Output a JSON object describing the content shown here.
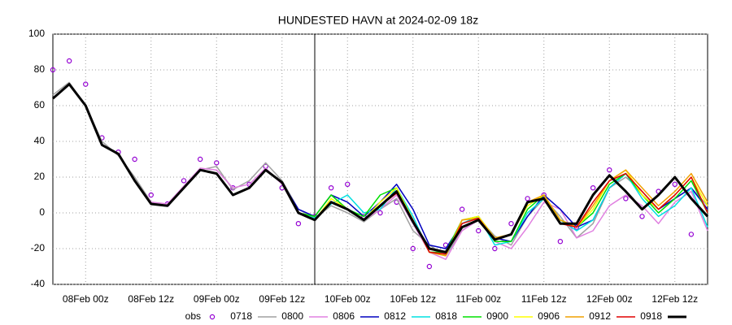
{
  "chart_data": {
    "type": "line",
    "title": "HUNDESTED HAVN at 2024-02-09 18z",
    "categories": [
      null,
      null,
      "08Feb 00z",
      null,
      null,
      null,
      "08Feb 12z",
      null,
      null,
      null,
      "09Feb 00z",
      null,
      null,
      null,
      "09Feb 12z",
      null,
      null,
      null,
      "10Feb 00z",
      null,
      null,
      null,
      "10Feb 12z",
      null,
      null,
      null,
      "11Feb 00z",
      null,
      null,
      null,
      "11Feb 12z",
      null,
      null,
      null,
      "12Feb 00z",
      null,
      null,
      null,
      "12Feb 12z",
      null,
      null
    ],
    "ylim": [
      -40,
      100
    ],
    "yticks": [
      -40,
      -20,
      0,
      20,
      40,
      60,
      80,
      100
    ],
    "grid": true,
    "series": [
      {
        "name": "obs",
        "color": "#9400d3",
        "marker": "circle",
        "values": [
          80,
          85,
          72,
          42,
          34,
          30,
          10,
          5,
          18,
          30,
          28,
          14,
          16,
          26,
          14,
          -6,
          -2,
          14,
          16,
          -2,
          0,
          6,
          -20,
          -30,
          -18,
          2,
          -10,
          -20,
          -6,
          8,
          10,
          -16,
          -8,
          14,
          24,
          8,
          -2,
          12,
          16,
          -12,
          null
        ]
      },
      {
        "name": "0718",
        "color": "#a0a0a0",
        "width": 1.5,
        "values": [
          66,
          73,
          60,
          40,
          32,
          20,
          6,
          4,
          14,
          24,
          26,
          13,
          18,
          28,
          18,
          2,
          -3,
          4,
          0,
          -5,
          2,
          8,
          -10,
          -18,
          -24,
          -10,
          -3,
          -13,
          -18,
          -2,
          8,
          -2,
          -14,
          -6,
          14,
          20,
          12,
          2,
          8,
          14,
          4
        ]
      },
      {
        "name": "0800",
        "color": "#e080e0",
        "width": 1.5,
        "values": [
          64,
          72,
          60,
          38,
          33,
          18,
          6,
          5,
          15,
          25,
          24,
          14,
          16,
          25,
          16,
          0,
          -4,
          6,
          2,
          -4,
          2,
          10,
          -6,
          -22,
          -26,
          -10,
          -4,
          -16,
          -20,
          -8,
          6,
          2,
          -14,
          -10,
          4,
          10,
          4,
          -6,
          6,
          12,
          -10
        ]
      },
      {
        "name": "0806",
        "color": "#0000c0",
        "width": 1.5,
        "values": [
          64,
          72,
          60,
          38,
          33,
          18,
          5,
          4,
          14,
          24,
          22,
          10,
          14,
          24,
          17,
          2,
          -2,
          10,
          6,
          -2,
          6,
          16,
          2,
          -18,
          -20,
          -6,
          -2,
          -14,
          -16,
          -2,
          10,
          2,
          -8,
          -4,
          14,
          22,
          10,
          2,
          8,
          14,
          2
        ]
      },
      {
        "name": "0812",
        "color": "#00e0e0",
        "width": 1.5,
        "values": [
          64,
          72,
          60,
          38,
          33,
          18,
          5,
          4,
          14,
          24,
          22,
          10,
          14,
          24,
          17,
          0,
          -3,
          5,
          10,
          0,
          2,
          14,
          -2,
          -22,
          -24,
          -6,
          -2,
          -18,
          -16,
          0,
          8,
          -4,
          -10,
          -4,
          14,
          22,
          8,
          -2,
          4,
          14,
          -8
        ]
      },
      {
        "name": "0818",
        "color": "#00e000",
        "width": 1.5,
        "values": [
          64,
          72,
          60,
          38,
          33,
          18,
          5,
          4,
          14,
          24,
          22,
          10,
          14,
          24,
          17,
          0,
          -2,
          10,
          2,
          -2,
          10,
          14,
          -4,
          -22,
          -22,
          -4,
          -2,
          -16,
          -16,
          2,
          10,
          -4,
          -8,
          0,
          16,
          22,
          10,
          0,
          8,
          18,
          0
        ]
      },
      {
        "name": "0900",
        "color": "#ffff00",
        "width": 1.5,
        "values": [
          64,
          72,
          60,
          38,
          33,
          18,
          5,
          4,
          14,
          24,
          22,
          10,
          14,
          24,
          17,
          0,
          -4,
          8,
          2,
          -4,
          6,
          14,
          -4,
          -22,
          -24,
          -4,
          -2,
          -14,
          -12,
          4,
          10,
          -4,
          -8,
          2,
          18,
          24,
          10,
          2,
          10,
          20,
          4
        ]
      },
      {
        "name": "0906",
        "color": "#f0a000",
        "width": 1.5,
        "values": [
          64,
          72,
          60,
          38,
          33,
          18,
          5,
          4,
          14,
          24,
          22,
          10,
          14,
          24,
          17,
          0,
          -4,
          6,
          2,
          -4,
          4,
          12,
          -4,
          -22,
          -24,
          -4,
          -3,
          -14,
          -12,
          6,
          10,
          -4,
          -8,
          4,
          18,
          24,
          14,
          4,
          12,
          22,
          6
        ]
      },
      {
        "name": "0912",
        "color": "#e00000",
        "width": 1.5,
        "values": [
          64,
          72,
          60,
          38,
          33,
          18,
          5,
          4,
          14,
          24,
          22,
          10,
          14,
          24,
          17,
          0,
          -4,
          6,
          2,
          -4,
          4,
          11,
          -4,
          -22,
          -23,
          -6,
          -3,
          -15,
          -12,
          6,
          8,
          -6,
          -8,
          6,
          18,
          22,
          12,
          2,
          10,
          20,
          0
        ]
      },
      {
        "name": "0918",
        "color": "#000000",
        "width": 3,
        "values": [
          64,
          72,
          60,
          38,
          33,
          18,
          5,
          4,
          14,
          24,
          22,
          10,
          14,
          24,
          17,
          0,
          -4,
          6,
          2,
          -4,
          4,
          12,
          -5,
          -20,
          -22,
          -8,
          -4,
          -15,
          -12,
          6,
          8,
          -6,
          -6,
          10,
          21,
          12,
          2,
          10,
          20,
          8,
          -2
        ]
      }
    ]
  }
}
